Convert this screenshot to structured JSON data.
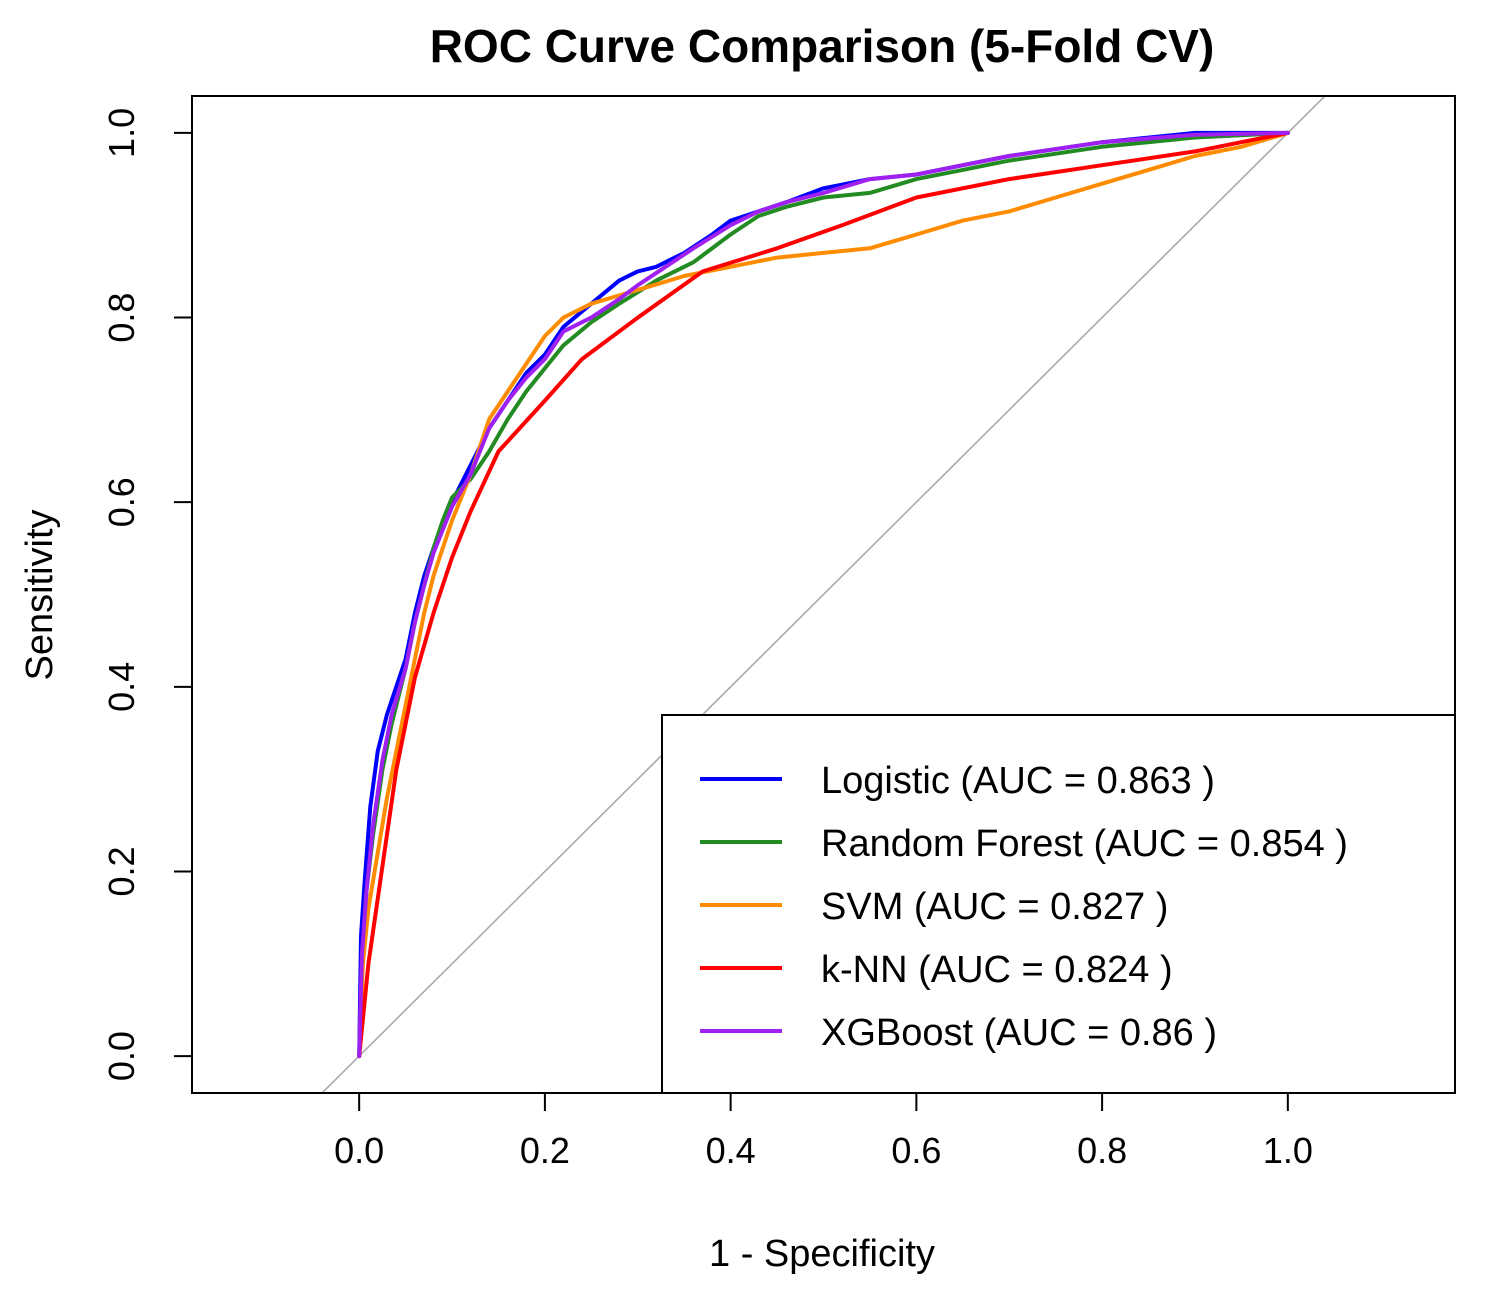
{
  "chart_data": {
    "type": "line",
    "title": "ROC Curve Comparison (5-Fold CV)",
    "xlabel": "1 - Specificity",
    "ylabel": "Sensitivity",
    "xlim": [
      -0.18,
      1.18
    ],
    "ylim": [
      -0.04,
      1.04
    ],
    "x_ticks": [
      "0.0",
      "0.2",
      "0.4",
      "0.6",
      "0.8",
      "1.0"
    ],
    "y_ticks": [
      "0.0",
      "0.2",
      "0.4",
      "0.6",
      "0.8",
      "1.0"
    ],
    "reference_line": {
      "name": "chance diagonal",
      "color": "#aaaaaa"
    },
    "legend_position": "bottom-right",
    "series": [
      {
        "name": "Logistic",
        "label": "Logistic (AUC = 0.863 )",
        "auc": 0.863,
        "color": "#0000ff",
        "points": [
          [
            0,
            0
          ],
          [
            0.002,
            0.13
          ],
          [
            0.006,
            0.19
          ],
          [
            0.012,
            0.27
          ],
          [
            0.02,
            0.33
          ],
          [
            0.03,
            0.37
          ],
          [
            0.04,
            0.4
          ],
          [
            0.05,
            0.43
          ],
          [
            0.06,
            0.48
          ],
          [
            0.07,
            0.52
          ],
          [
            0.08,
            0.55
          ],
          [
            0.09,
            0.575
          ],
          [
            0.1,
            0.6
          ],
          [
            0.11,
            0.62
          ],
          [
            0.12,
            0.64
          ],
          [
            0.14,
            0.68
          ],
          [
            0.16,
            0.71
          ],
          [
            0.18,
            0.74
          ],
          [
            0.2,
            0.76
          ],
          [
            0.22,
            0.79
          ],
          [
            0.25,
            0.815
          ],
          [
            0.28,
            0.84
          ],
          [
            0.3,
            0.85
          ],
          [
            0.32,
            0.855
          ],
          [
            0.35,
            0.87
          ],
          [
            0.38,
            0.89
          ],
          [
            0.4,
            0.905
          ],
          [
            0.43,
            0.915
          ],
          [
            0.46,
            0.925
          ],
          [
            0.5,
            0.94
          ],
          [
            0.55,
            0.95
          ],
          [
            0.6,
            0.955
          ],
          [
            0.65,
            0.965
          ],
          [
            0.7,
            0.975
          ],
          [
            0.8,
            0.99
          ],
          [
            0.9,
            1.0
          ],
          [
            1.0,
            1.0
          ]
        ]
      },
      {
        "name": "Random Forest",
        "label": "Random Forest (AUC = 0.854 )",
        "auc": 0.854,
        "color": "#228b22",
        "points": [
          [
            0,
            0
          ],
          [
            0.004,
            0.12
          ],
          [
            0.008,
            0.18
          ],
          [
            0.015,
            0.24
          ],
          [
            0.025,
            0.31
          ],
          [
            0.035,
            0.36
          ],
          [
            0.05,
            0.42
          ],
          [
            0.06,
            0.47
          ],
          [
            0.07,
            0.51
          ],
          [
            0.08,
            0.55
          ],
          [
            0.09,
            0.58
          ],
          [
            0.1,
            0.605
          ],
          [
            0.12,
            0.625
          ],
          [
            0.14,
            0.655
          ],
          [
            0.16,
            0.69
          ],
          [
            0.18,
            0.72
          ],
          [
            0.2,
            0.745
          ],
          [
            0.22,
            0.77
          ],
          [
            0.25,
            0.795
          ],
          [
            0.28,
            0.815
          ],
          [
            0.32,
            0.84
          ],
          [
            0.36,
            0.86
          ],
          [
            0.4,
            0.89
          ],
          [
            0.43,
            0.91
          ],
          [
            0.46,
            0.92
          ],
          [
            0.5,
            0.93
          ],
          [
            0.55,
            0.935
          ],
          [
            0.6,
            0.95
          ],
          [
            0.65,
            0.96
          ],
          [
            0.7,
            0.97
          ],
          [
            0.8,
            0.985
          ],
          [
            0.9,
            0.995
          ],
          [
            1.0,
            1.0
          ]
        ]
      },
      {
        "name": "SVM",
        "label": "SVM (AUC = 0.827 )",
        "auc": 0.827,
        "color": "#ff8c00",
        "points": [
          [
            0,
            0
          ],
          [
            0.004,
            0.1
          ],
          [
            0.01,
            0.16
          ],
          [
            0.02,
            0.22
          ],
          [
            0.03,
            0.28
          ],
          [
            0.04,
            0.33
          ],
          [
            0.05,
            0.38
          ],
          [
            0.06,
            0.43
          ],
          [
            0.07,
            0.48
          ],
          [
            0.08,
            0.52
          ],
          [
            0.09,
            0.55
          ],
          [
            0.1,
            0.58
          ],
          [
            0.12,
            0.63
          ],
          [
            0.14,
            0.69
          ],
          [
            0.16,
            0.72
          ],
          [
            0.18,
            0.75
          ],
          [
            0.2,
            0.78
          ],
          [
            0.22,
            0.8
          ],
          [
            0.25,
            0.815
          ],
          [
            0.3,
            0.83
          ],
          [
            0.35,
            0.845
          ],
          [
            0.4,
            0.855
          ],
          [
            0.45,
            0.865
          ],
          [
            0.5,
            0.87
          ],
          [
            0.55,
            0.875
          ],
          [
            0.6,
            0.89
          ],
          [
            0.65,
            0.905
          ],
          [
            0.7,
            0.915
          ],
          [
            0.75,
            0.93
          ],
          [
            0.8,
            0.945
          ],
          [
            0.85,
            0.96
          ],
          [
            0.9,
            0.975
          ],
          [
            0.95,
            0.985
          ],
          [
            1.0,
            1.0
          ]
        ]
      },
      {
        "name": "k-NN",
        "label": "k-NN (AUC = 0.824 )",
        "auc": 0.824,
        "color": "#ff0000",
        "points": [
          [
            0,
            0
          ],
          [
            0.005,
            0.05
          ],
          [
            0.01,
            0.1
          ],
          [
            0.02,
            0.17
          ],
          [
            0.03,
            0.24
          ],
          [
            0.04,
            0.31
          ],
          [
            0.06,
            0.41
          ],
          [
            0.08,
            0.48
          ],
          [
            0.1,
            0.54
          ],
          [
            0.12,
            0.59
          ],
          [
            0.15,
            0.655
          ],
          [
            0.2,
            0.71
          ],
          [
            0.24,
            0.755
          ],
          [
            0.3,
            0.8
          ],
          [
            0.37,
            0.85
          ],
          [
            0.45,
            0.875
          ],
          [
            0.52,
            0.9
          ],
          [
            0.6,
            0.93
          ],
          [
            0.7,
            0.95
          ],
          [
            0.8,
            0.965
          ],
          [
            0.9,
            0.98
          ],
          [
            1.0,
            1.0
          ]
        ]
      },
      {
        "name": "XGBoost",
        "label": "XGBoost (AUC = 0.86 )",
        "auc": 0.86,
        "color": "#a020f0",
        "points": [
          [
            0,
            0
          ],
          [
            0.003,
            0.11
          ],
          [
            0.008,
            0.18
          ],
          [
            0.015,
            0.25
          ],
          [
            0.025,
            0.32
          ],
          [
            0.035,
            0.37
          ],
          [
            0.05,
            0.42
          ],
          [
            0.06,
            0.47
          ],
          [
            0.07,
            0.51
          ],
          [
            0.08,
            0.545
          ],
          [
            0.09,
            0.57
          ],
          [
            0.1,
            0.595
          ],
          [
            0.12,
            0.63
          ],
          [
            0.14,
            0.68
          ],
          [
            0.16,
            0.71
          ],
          [
            0.18,
            0.735
          ],
          [
            0.2,
            0.755
          ],
          [
            0.22,
            0.785
          ],
          [
            0.25,
            0.8
          ],
          [
            0.28,
            0.82
          ],
          [
            0.3,
            0.835
          ],
          [
            0.33,
            0.855
          ],
          [
            0.36,
            0.875
          ],
          [
            0.4,
            0.9
          ],
          [
            0.43,
            0.915
          ],
          [
            0.46,
            0.925
          ],
          [
            0.5,
            0.935
          ],
          [
            0.55,
            0.95
          ],
          [
            0.6,
            0.955
          ],
          [
            0.65,
            0.965
          ],
          [
            0.7,
            0.975
          ],
          [
            0.8,
            0.99
          ],
          [
            0.9,
            0.998
          ],
          [
            1.0,
            1.0
          ]
        ]
      }
    ]
  }
}
